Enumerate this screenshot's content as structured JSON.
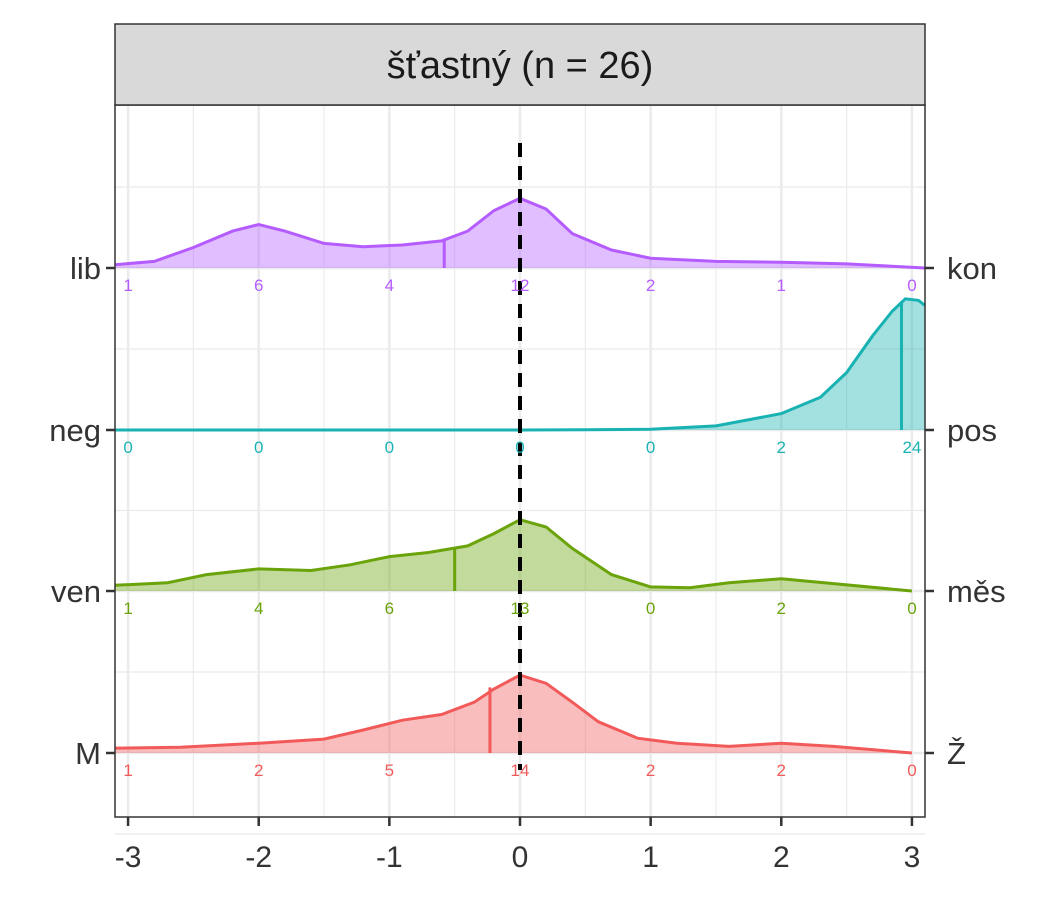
{
  "chart_data": {
    "type": "ridgeline",
    "title": "šťastný (n = 26)",
    "x_ticks": [
      -3,
      -2,
      -1,
      0,
      1,
      2,
      3
    ],
    "xlim": [
      -3.1,
      3.1
    ],
    "reference_line_x": 0,
    "grid": true,
    "categories_x": [
      -3,
      -2,
      -1,
      0,
      1,
      2,
      3
    ],
    "series": [
      {
        "left_label": "lib",
        "right_label": "kon",
        "color": "#B55CFF",
        "counts": [
          1,
          6,
          4,
          12,
          2,
          1,
          0
        ],
        "mean": -0.58,
        "density": [
          [
            -3.1,
            0.04
          ],
          [
            -2.8,
            0.08
          ],
          [
            -2.5,
            0.25
          ],
          [
            -2.2,
            0.45
          ],
          [
            -2.0,
            0.53
          ],
          [
            -1.8,
            0.45
          ],
          [
            -1.5,
            0.3
          ],
          [
            -1.2,
            0.26
          ],
          [
            -0.9,
            0.28
          ],
          [
            -0.6,
            0.33
          ],
          [
            -0.4,
            0.45
          ],
          [
            -0.2,
            0.7
          ],
          [
            0.0,
            0.85
          ],
          [
            0.2,
            0.72
          ],
          [
            0.4,
            0.42
          ],
          [
            0.7,
            0.22
          ],
          [
            1.0,
            0.12
          ],
          [
            1.5,
            0.08
          ],
          [
            2.0,
            0.07
          ],
          [
            2.5,
            0.05
          ],
          [
            3.1,
            0.0
          ]
        ],
        "mean_height": 0.36
      },
      {
        "left_label": "neg",
        "right_label": "pos",
        "color": "#19B2B2",
        "counts": [
          0,
          0,
          0,
          0,
          0,
          2,
          24
        ],
        "mean": 2.92,
        "density": [
          [
            -3.1,
            0.0
          ],
          [
            -1.0,
            0.0
          ],
          [
            0.0,
            0.0
          ],
          [
            0.5,
            0.003
          ],
          [
            1.0,
            0.01
          ],
          [
            1.5,
            0.05
          ],
          [
            2.0,
            0.2
          ],
          [
            2.3,
            0.4
          ],
          [
            2.5,
            0.7
          ],
          [
            2.7,
            1.15
          ],
          [
            2.85,
            1.45
          ],
          [
            2.95,
            1.6
          ],
          [
            3.05,
            1.58
          ],
          [
            3.1,
            1.52
          ]
        ],
        "mean_height": 1.57
      },
      {
        "left_label": "ven",
        "right_label": "měs",
        "color": "#6AA30A",
        "counts": [
          1,
          4,
          6,
          13,
          0,
          2,
          0
        ],
        "mean": -0.5,
        "density": [
          [
            -3.1,
            0.07
          ],
          [
            -2.7,
            0.1
          ],
          [
            -2.4,
            0.2
          ],
          [
            -2.0,
            0.27
          ],
          [
            -1.6,
            0.25
          ],
          [
            -1.3,
            0.32
          ],
          [
            -1.0,
            0.42
          ],
          [
            -0.7,
            0.47
          ],
          [
            -0.4,
            0.55
          ],
          [
            -0.2,
            0.7
          ],
          [
            0.0,
            0.87
          ],
          [
            0.2,
            0.78
          ],
          [
            0.4,
            0.52
          ],
          [
            0.7,
            0.2
          ],
          [
            1.0,
            0.05
          ],
          [
            1.3,
            0.04
          ],
          [
            1.6,
            0.1
          ],
          [
            2.0,
            0.15
          ],
          [
            2.4,
            0.09
          ],
          [
            3.0,
            0.0
          ]
        ],
        "mean_height": 0.52
      },
      {
        "left_label": "M",
        "right_label": "Ž",
        "color": "#F25A5A",
        "counts": [
          1,
          2,
          5,
          14,
          2,
          2,
          0
        ],
        "mean": -0.23,
        "density": [
          [
            -3.1,
            0.06
          ],
          [
            -2.6,
            0.07
          ],
          [
            -2.0,
            0.12
          ],
          [
            -1.5,
            0.17
          ],
          [
            -1.2,
            0.28
          ],
          [
            -0.9,
            0.4
          ],
          [
            -0.6,
            0.47
          ],
          [
            -0.35,
            0.62
          ],
          [
            -0.2,
            0.78
          ],
          [
            0.0,
            0.95
          ],
          [
            0.2,
            0.85
          ],
          [
            0.4,
            0.62
          ],
          [
            0.6,
            0.38
          ],
          [
            0.9,
            0.18
          ],
          [
            1.2,
            0.12
          ],
          [
            1.6,
            0.08
          ],
          [
            2.0,
            0.12
          ],
          [
            2.4,
            0.08
          ],
          [
            3.0,
            0.0
          ]
        ],
        "mean_height": 0.8
      }
    ]
  }
}
